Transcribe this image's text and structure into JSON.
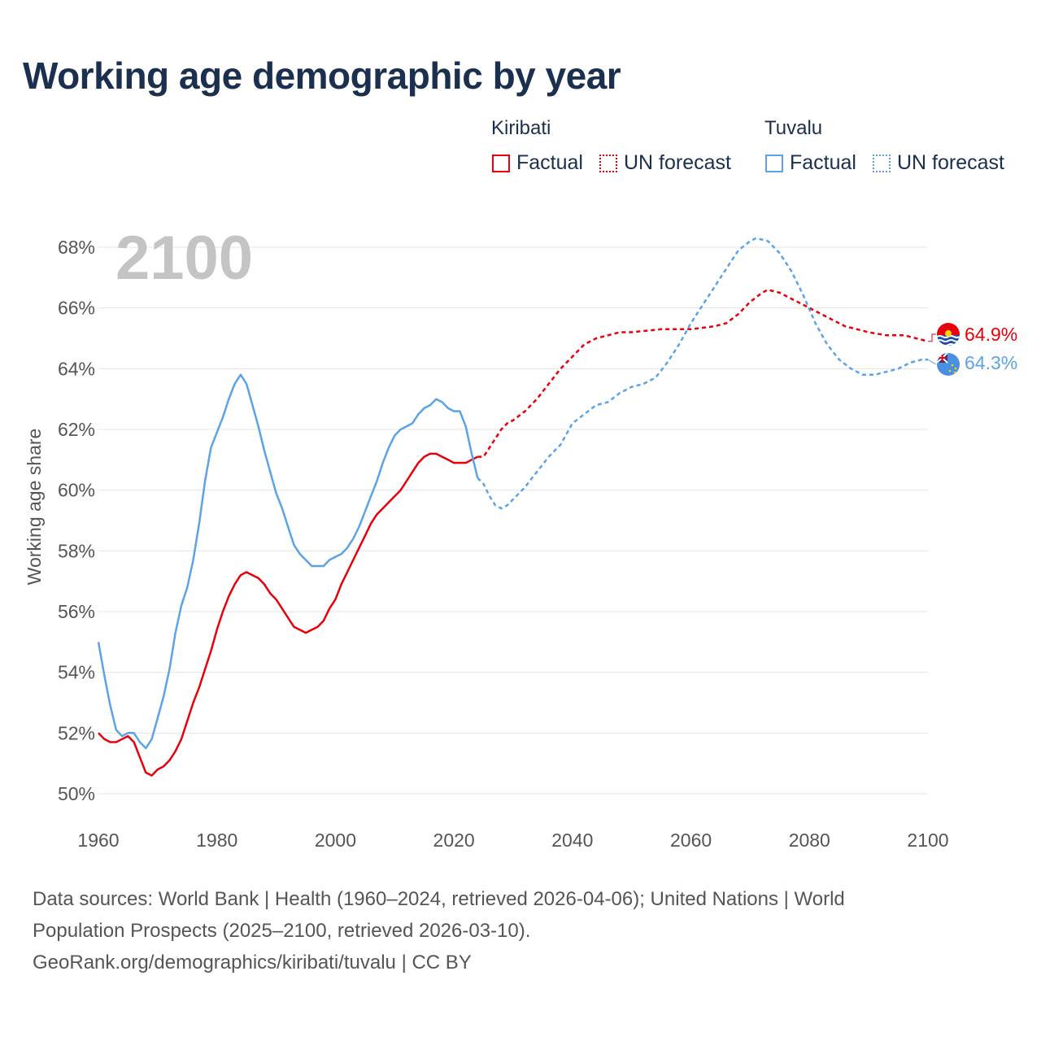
{
  "header": {
    "title": "Working age demographic by year"
  },
  "legend": {
    "groups": [
      {
        "name": "Kiribati",
        "factual_label": "Factual",
        "forecast_label": "UN forecast",
        "color": "#e8000b"
      },
      {
        "name": "Tuvalu",
        "factual_label": "Factual",
        "forecast_label": "UN forecast",
        "color": "#5ba3e6"
      }
    ]
  },
  "footer": {
    "line1": "Data sources: World Bank | Health (1960–2024, retrieved 2026-04-06); United Nations | World",
    "line2": "Population Prospects (2025–2100, retrieved 2026-03-10).",
    "line3": "GeoRank.org/demographics/kiribati/tuvalu | CC BY"
  },
  "chart_data": {
    "type": "line",
    "title": "Working age demographic by year",
    "year_label": "2100",
    "ylabel": "Working age share",
    "xlabel": "",
    "xlim": [
      1960,
      2100
    ],
    "ylim": [
      50,
      68
    ],
    "x_ticks": [
      "1960",
      "1980",
      "2000",
      "2020",
      "2040",
      "2060",
      "2080",
      "2100"
    ],
    "y_ticks": [
      "50%",
      "52%",
      "54%",
      "56%",
      "58%",
      "60%",
      "62%",
      "64%",
      "66%",
      "68%"
    ],
    "grid": true,
    "factual_range": [
      1960,
      2024
    ],
    "forecast_range": [
      2024,
      2100
    ],
    "series": [
      {
        "name": "Kiribati",
        "color": "#e8000b",
        "end_label": "64.9%",
        "points": [
          [
            1960,
            52.0
          ],
          [
            1961,
            51.8
          ],
          [
            1962,
            51.7
          ],
          [
            1963,
            51.7
          ],
          [
            1964,
            51.8
          ],
          [
            1965,
            51.9
          ],
          [
            1966,
            51.7
          ],
          [
            1967,
            51.2
          ],
          [
            1968,
            50.7
          ],
          [
            1969,
            50.6
          ],
          [
            1970,
            50.8
          ],
          [
            1971,
            50.9
          ],
          [
            1972,
            51.1
          ],
          [
            1973,
            51.4
          ],
          [
            1974,
            51.8
          ],
          [
            1975,
            52.4
          ],
          [
            1976,
            53.0
          ],
          [
            1977,
            53.5
          ],
          [
            1978,
            54.1
          ],
          [
            1979,
            54.7
          ],
          [
            1980,
            55.4
          ],
          [
            1981,
            56.0
          ],
          [
            1982,
            56.5
          ],
          [
            1983,
            56.9
          ],
          [
            1984,
            57.2
          ],
          [
            1985,
            57.3
          ],
          [
            1986,
            57.2
          ],
          [
            1987,
            57.1
          ],
          [
            1988,
            56.9
          ],
          [
            1989,
            56.6
          ],
          [
            1990,
            56.4
          ],
          [
            1991,
            56.1
          ],
          [
            1992,
            55.8
          ],
          [
            1993,
            55.5
          ],
          [
            1994,
            55.4
          ],
          [
            1995,
            55.3
          ],
          [
            1996,
            55.4
          ],
          [
            1997,
            55.5
          ],
          [
            1998,
            55.7
          ],
          [
            1999,
            56.1
          ],
          [
            2000,
            56.4
          ],
          [
            2001,
            56.9
          ],
          [
            2002,
            57.3
          ],
          [
            2003,
            57.7
          ],
          [
            2004,
            58.1
          ],
          [
            2005,
            58.5
          ],
          [
            2006,
            58.9
          ],
          [
            2007,
            59.2
          ],
          [
            2008,
            59.4
          ],
          [
            2009,
            59.6
          ],
          [
            2010,
            59.8
          ],
          [
            2011,
            60.0
          ],
          [
            2012,
            60.3
          ],
          [
            2013,
            60.6
          ],
          [
            2014,
            60.9
          ],
          [
            2015,
            61.1
          ],
          [
            2016,
            61.2
          ],
          [
            2017,
            61.2
          ],
          [
            2018,
            61.1
          ],
          [
            2019,
            61.0
          ],
          [
            2020,
            60.9
          ],
          [
            2021,
            60.9
          ],
          [
            2022,
            60.9
          ],
          [
            2023,
            61.0
          ],
          [
            2024,
            61.1
          ],
          [
            2025,
            61.1
          ],
          [
            2026,
            61.4
          ],
          [
            2027,
            61.7
          ],
          [
            2028,
            62.0
          ],
          [
            2029,
            62.2
          ],
          [
            2030,
            62.3
          ],
          [
            2032,
            62.6
          ],
          [
            2034,
            63.0
          ],
          [
            2036,
            63.5
          ],
          [
            2038,
            64.0
          ],
          [
            2040,
            64.4
          ],
          [
            2042,
            64.8
          ],
          [
            2044,
            65.0
          ],
          [
            2046,
            65.1
          ],
          [
            2048,
            65.2
          ],
          [
            2050,
            65.2
          ],
          [
            2055,
            65.3
          ],
          [
            2060,
            65.3
          ],
          [
            2064,
            65.4
          ],
          [
            2066,
            65.5
          ],
          [
            2068,
            65.8
          ],
          [
            2070,
            66.2
          ],
          [
            2072,
            66.5
          ],
          [
            2073,
            66.6
          ],
          [
            2075,
            66.5
          ],
          [
            2077,
            66.3
          ],
          [
            2080,
            66.0
          ],
          [
            2083,
            65.7
          ],
          [
            2086,
            65.4
          ],
          [
            2090,
            65.2
          ],
          [
            2093,
            65.1
          ],
          [
            2096,
            65.1
          ],
          [
            2098,
            65.0
          ],
          [
            2100,
            64.9
          ]
        ]
      },
      {
        "name": "Tuvalu",
        "color": "#5ba3e6",
        "end_label": "64.3%",
        "points": [
          [
            1960,
            55.0
          ],
          [
            1961,
            53.9
          ],
          [
            1962,
            52.9
          ],
          [
            1963,
            52.1
          ],
          [
            1964,
            51.9
          ],
          [
            1965,
            52.0
          ],
          [
            1966,
            52.0
          ],
          [
            1967,
            51.7
          ],
          [
            1968,
            51.5
          ],
          [
            1969,
            51.8
          ],
          [
            1970,
            52.5
          ],
          [
            1971,
            53.2
          ],
          [
            1972,
            54.1
          ],
          [
            1973,
            55.3
          ],
          [
            1974,
            56.2
          ],
          [
            1975,
            56.8
          ],
          [
            1976,
            57.7
          ],
          [
            1977,
            58.9
          ],
          [
            1978,
            60.3
          ],
          [
            1979,
            61.4
          ],
          [
            1980,
            61.9
          ],
          [
            1981,
            62.4
          ],
          [
            1982,
            63.0
          ],
          [
            1983,
            63.5
          ],
          [
            1984,
            63.8
          ],
          [
            1985,
            63.5
          ],
          [
            1986,
            62.8
          ],
          [
            1987,
            62.1
          ],
          [
            1988,
            61.3
          ],
          [
            1989,
            60.6
          ],
          [
            1990,
            59.9
          ],
          [
            1991,
            59.4
          ],
          [
            1992,
            58.8
          ],
          [
            1993,
            58.2
          ],
          [
            1994,
            57.9
          ],
          [
            1995,
            57.7
          ],
          [
            1996,
            57.5
          ],
          [
            1997,
            57.5
          ],
          [
            1998,
            57.5
          ],
          [
            1999,
            57.7
          ],
          [
            2000,
            57.8
          ],
          [
            2001,
            57.9
          ],
          [
            2002,
            58.1
          ],
          [
            2003,
            58.4
          ],
          [
            2004,
            58.8
          ],
          [
            2005,
            59.3
          ],
          [
            2006,
            59.8
          ],
          [
            2007,
            60.3
          ],
          [
            2008,
            60.9
          ],
          [
            2009,
            61.4
          ],
          [
            2010,
            61.8
          ],
          [
            2011,
            62.0
          ],
          [
            2012,
            62.1
          ],
          [
            2013,
            62.2
          ],
          [
            2014,
            62.5
          ],
          [
            2015,
            62.7
          ],
          [
            2016,
            62.8
          ],
          [
            2017,
            63.0
          ],
          [
            2018,
            62.9
          ],
          [
            2019,
            62.7
          ],
          [
            2020,
            62.6
          ],
          [
            2021,
            62.6
          ],
          [
            2022,
            62.1
          ],
          [
            2023,
            61.2
          ],
          [
            2024,
            60.4
          ],
          [
            2025,
            60.2
          ],
          [
            2026,
            59.8
          ],
          [
            2027,
            59.5
          ],
          [
            2028,
            59.4
          ],
          [
            2029,
            59.5
          ],
          [
            2030,
            59.7
          ],
          [
            2032,
            60.1
          ],
          [
            2034,
            60.6
          ],
          [
            2036,
            61.1
          ],
          [
            2038,
            61.5
          ],
          [
            2040,
            62.2
          ],
          [
            2042,
            62.5
          ],
          [
            2044,
            62.8
          ],
          [
            2046,
            62.9
          ],
          [
            2048,
            63.2
          ],
          [
            2050,
            63.4
          ],
          [
            2052,
            63.5
          ],
          [
            2054,
            63.7
          ],
          [
            2056,
            64.2
          ],
          [
            2058,
            64.8
          ],
          [
            2060,
            65.5
          ],
          [
            2062,
            66.1
          ],
          [
            2064,
            66.7
          ],
          [
            2066,
            67.3
          ],
          [
            2068,
            67.9
          ],
          [
            2070,
            68.2
          ],
          [
            2071,
            68.3
          ],
          [
            2073,
            68.2
          ],
          [
            2075,
            67.8
          ],
          [
            2077,
            67.2
          ],
          [
            2079,
            66.4
          ],
          [
            2081,
            65.5
          ],
          [
            2083,
            64.8
          ],
          [
            2085,
            64.3
          ],
          [
            2087,
            64.0
          ],
          [
            2089,
            63.8
          ],
          [
            2091,
            63.8
          ],
          [
            2093,
            63.9
          ],
          [
            2095,
            64.0
          ],
          [
            2097,
            64.2
          ],
          [
            2099,
            64.3
          ],
          [
            2100,
            64.3
          ]
        ]
      }
    ]
  }
}
